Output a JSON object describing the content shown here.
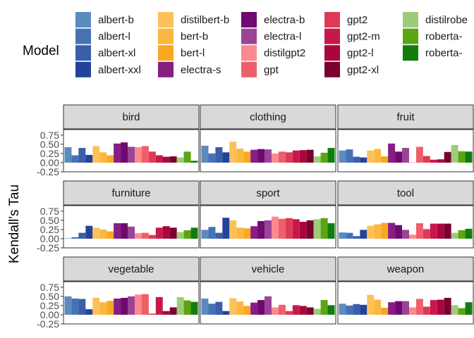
{
  "chart_data": {
    "type": "bar",
    "ylabel": "Kendall's Tau",
    "xlabel": "",
    "ylim": [
      -0.25,
      0.9
    ],
    "yticks": [
      -0.25,
      0.0,
      0.25,
      0.5,
      0.75
    ],
    "ytick_labels": [
      "-0.25",
      "0.00",
      "0.25",
      "0.50",
      "0.75"
    ],
    "legend": {
      "title": "Model",
      "placement": "top",
      "columns": 5,
      "entries": [
        {
          "name": "albert-b",
          "label": "albert-b",
          "color": "#5b8bbf"
        },
        {
          "name": "albert-l",
          "label": "albert-l",
          "color": "#4472b5"
        },
        {
          "name": "albert-xl",
          "label": "albert-xl",
          "color": "#3a5ea8"
        },
        {
          "name": "albert-xxl",
          "label": "albert-xxl",
          "color": "#22439a"
        },
        {
          "name": "distilbert-b",
          "label": "distilbert-b",
          "color": "#fdc15a"
        },
        {
          "name": "bert-b",
          "label": "bert-b",
          "color": "#fcb73f"
        },
        {
          "name": "bert-l",
          "label": "bert-l",
          "color": "#f9a822"
        },
        {
          "name": "electra-s",
          "label": "electra-s",
          "color": "#861e84"
        },
        {
          "name": "electra-b",
          "label": "electra-b",
          "color": "#6e0a70"
        },
        {
          "name": "electra-l",
          "label": "electra-l",
          "color": "#9a4397"
        },
        {
          "name": "distilgpt2",
          "label": "distilgpt2",
          "color": "#fa8a8e"
        },
        {
          "name": "gpt",
          "label": "gpt",
          "color": "#ef5e6b"
        },
        {
          "name": "gpt2",
          "label": "gpt2",
          "color": "#de3a55"
        },
        {
          "name": "gpt2-m",
          "label": "gpt2-m",
          "color": "#c8184a"
        },
        {
          "name": "gpt2-l",
          "label": "gpt2-l",
          "color": "#a8063d"
        },
        {
          "name": "gpt2-xl",
          "label": "gpt2-xl",
          "color": "#7a0030"
        },
        {
          "name": "distilroberta-b",
          "label": "distilrobe",
          "color": "#9ecb7b"
        },
        {
          "name": "roberta-b",
          "label": "roberta-",
          "color": "#5aa511"
        },
        {
          "name": "roberta-l",
          "label": "roberta-",
          "color": "#137c0e"
        }
      ]
    },
    "panels": [
      {
        "title": "bird",
        "values": [
          0.42,
          0.2,
          0.4,
          0.21,
          0.45,
          0.28,
          0.2,
          0.52,
          0.55,
          0.43,
          0.42,
          0.45,
          0.3,
          0.2,
          0.16,
          0.17,
          0.14,
          0.3,
          0.05
        ]
      },
      {
        "title": "clothing",
        "values": [
          0.46,
          0.25,
          0.42,
          0.28,
          0.57,
          0.38,
          0.3,
          0.35,
          0.37,
          0.36,
          0.25,
          0.3,
          0.28,
          0.33,
          0.34,
          0.35,
          0.17,
          0.27,
          0.4
        ]
      },
      {
        "title": "fruit",
        "values": [
          0.33,
          0.36,
          0.16,
          0.14,
          0.33,
          0.37,
          0.17,
          0.52,
          0.3,
          0.4,
          0.01,
          0.43,
          0.18,
          0.08,
          0.09,
          0.29,
          0.48,
          0.31,
          0.3
        ]
      },
      {
        "title": "furniture",
        "values": [
          0.01,
          0.04,
          0.16,
          0.35,
          0.3,
          0.25,
          0.2,
          0.42,
          0.42,
          0.33,
          0.15,
          0.16,
          0.1,
          0.3,
          0.34,
          0.3,
          0.18,
          0.23,
          0.3
        ]
      },
      {
        "title": "sport",
        "values": [
          0.24,
          0.32,
          0.16,
          0.57,
          0.5,
          0.3,
          0.28,
          0.34,
          0.48,
          0.5,
          0.6,
          0.54,
          0.56,
          0.53,
          0.46,
          0.5,
          0.53,
          0.56,
          0.42
        ]
      },
      {
        "title": "tool",
        "values": [
          0.17,
          0.16,
          0.07,
          0.24,
          0.35,
          0.39,
          0.43,
          0.43,
          0.37,
          0.24,
          0.11,
          0.42,
          0.26,
          0.41,
          0.41,
          0.41,
          0.16,
          0.23,
          0.27
        ]
      },
      {
        "title": "vegetable",
        "values": [
          0.5,
          0.44,
          0.43,
          0.15,
          0.46,
          0.34,
          0.38,
          0.44,
          0.46,
          0.5,
          0.55,
          0.56,
          0.03,
          0.48,
          0.1,
          0.2,
          0.48,
          0.39,
          0.35
        ]
      },
      {
        "title": "vehicle",
        "values": [
          0.44,
          0.3,
          0.35,
          0.1,
          0.45,
          0.36,
          0.24,
          0.33,
          0.4,
          0.5,
          0.2,
          0.27,
          0.1,
          0.26,
          0.24,
          0.2,
          0.16,
          0.4,
          0.26
        ]
      },
      {
        "title": "weapon",
        "values": [
          0.3,
          0.25,
          0.29,
          0.27,
          0.54,
          0.41,
          0.19,
          0.34,
          0.37,
          0.37,
          0.2,
          0.43,
          0.22,
          0.4,
          0.41,
          0.46,
          0.26,
          0.18,
          0.34
        ]
      }
    ]
  }
}
